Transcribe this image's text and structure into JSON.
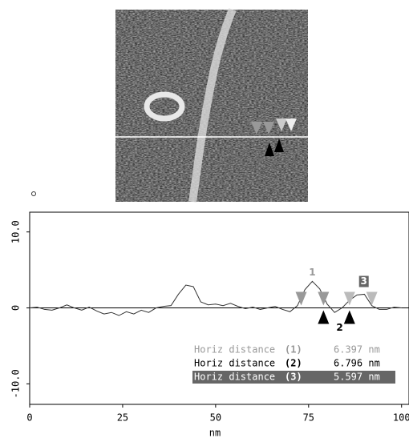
{
  "chart_data": {
    "type": "line",
    "x_label": "nm",
    "xlim": [
      0,
      102
    ],
    "xticks": [
      0,
      25,
      50,
      75,
      100
    ],
    "ylim": [
      -12.7,
      12.6
    ],
    "yticks": [
      {
        "value": 10,
        "label": "10.0"
      },
      0,
      {
        "value": -10,
        "label": "-10.0"
      }
    ],
    "zero_line": true,
    "series": [
      {
        "color": "#333333",
        "x": [
          0,
          2,
          4,
          6,
          8,
          10,
          12,
          14,
          16,
          18,
          20,
          22,
          24,
          26,
          28,
          30,
          32,
          34,
          36,
          38,
          40,
          42,
          44,
          46,
          48,
          50,
          52,
          54,
          56,
          58,
          60,
          62,
          64,
          66,
          68,
          70,
          72,
          74,
          76,
          78,
          80,
          82,
          84,
          86,
          88,
          90,
          92,
          94,
          96,
          98,
          100
        ],
        "values": [
          0,
          0.1,
          -0.2,
          -0.3,
          0,
          0.4,
          0,
          -0.3,
          0.1,
          -0.4,
          -0.8,
          -0.6,
          -1,
          -0.5,
          -0.8,
          -0.3,
          -0.6,
          0,
          0.2,
          0.3,
          1.8,
          3,
          2.8,
          0.8,
          0.4,
          0.5,
          0.3,
          0.6,
          0.2,
          -0.1,
          0.1,
          -0.2,
          0,
          0.2,
          -0.2,
          -0.5,
          0.3,
          2.4,
          3.5,
          2.5,
          0.5,
          -0.6,
          0,
          1,
          1.7,
          1.8,
          0.3,
          -0.2,
          -0.2,
          0.1,
          0
        ]
      }
    ],
    "cursors": [
      {
        "name": "1",
        "color": "#999999",
        "x": [
          73,
          79
        ]
      },
      {
        "name": "2",
        "color": "#000000",
        "x": [
          79,
          86
        ]
      },
      {
        "name": "3",
        "color": "#bbbbbb",
        "x": [
          86,
          92
        ]
      }
    ],
    "measurements": [
      {
        "label": "Horiz distance",
        "index": "(1)",
        "value": "6.397 nm",
        "color": "#999999"
      },
      {
        "label": "Horiz distance",
        "index": "(2)",
        "value": "6.796 nm",
        "color": "#000000"
      },
      {
        "label": "Horiz distance",
        "index": "(3)",
        "value": "5.597 nm",
        "color": "#ffffff",
        "background": "#666666"
      }
    ]
  }
}
